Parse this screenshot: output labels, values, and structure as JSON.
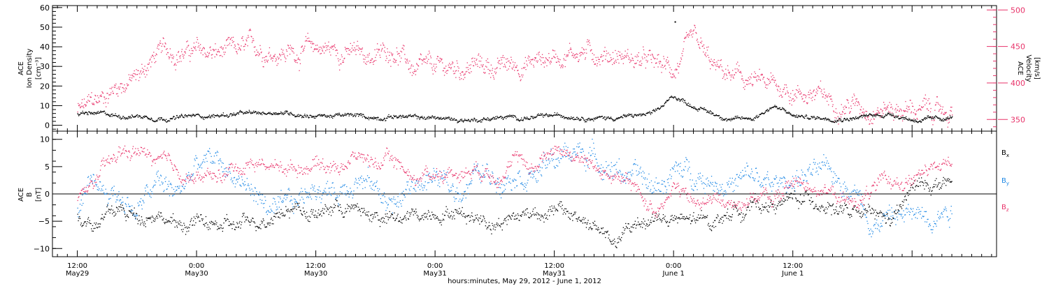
{
  "chart_data": [
    {
      "type": "scatter",
      "panel": "top",
      "left_axis": {
        "label_lines": [
          "ACE",
          "Ion Density",
          "[cm⁻³]"
        ],
        "ylim": [
          -3,
          61
        ],
        "ticks": [
          0,
          10,
          20,
          30,
          40,
          50,
          60
        ],
        "tick_labels": [
          "0",
          "10",
          "20",
          "30",
          "40",
          "50",
          "60"
        ],
        "color": "#000000"
      },
      "right_axis": {
        "label_lines": [
          "ACE",
          "Velocity",
          "[km/s]"
        ],
        "ylim": [
          334,
          506
        ],
        "ticks": [
          350,
          400,
          450,
          500
        ],
        "tick_labels": [
          "350",
          "400",
          "450",
          "500"
        ],
        "color": "#e8336a"
      },
      "series": [
        {
          "axis": "right",
          "color": "#e8336a",
          "x_hours": [
            0,
            2,
            4,
            6,
            8,
            10,
            12,
            14,
            16,
            18,
            20,
            22,
            24,
            26,
            28,
            30,
            32,
            34,
            36,
            38,
            40,
            42,
            44,
            46,
            48,
            50,
            52,
            54,
            56,
            58,
            60,
            62,
            64,
            66,
            68,
            70,
            72,
            74,
            76,
            78,
            80,
            82,
            84,
            86,
            88
          ],
          "values": [
            362,
            375,
            398,
            408,
            440,
            445,
            443,
            440,
            442,
            448,
            445,
            443,
            450,
            445,
            440,
            437,
            448,
            415,
            418,
            420,
            425,
            422,
            425,
            430,
            438,
            445,
            442,
            440,
            433,
            425,
            418,
            455,
            418,
            408,
            400,
            395,
            390,
            385,
            375,
            372,
            368,
            366,
            365,
            362,
            360
          ],
          "spread": 18
        },
        {
          "axis": "left",
          "color": "#000000",
          "x_hours": [
            0,
            2,
            4,
            6,
            8,
            10,
            12,
            14,
            16,
            18,
            20,
            22,
            24,
            26,
            28,
            30,
            32,
            34,
            36,
            38,
            40,
            42,
            44,
            46,
            48,
            50,
            52,
            54,
            56,
            58,
            60,
            62,
            64,
            66,
            68,
            70,
            72,
            74,
            76,
            78,
            80,
            82,
            84,
            86,
            88
          ],
          "values": [
            6,
            6,
            5,
            5,
            4,
            4,
            5,
            5,
            6,
            6,
            7,
            6,
            5,
            5,
            5,
            4,
            5,
            4,
            4,
            3,
            3,
            4,
            4,
            4,
            5,
            5,
            4,
            4,
            5,
            6,
            15,
            10,
            6,
            3,
            4,
            10,
            5,
            4,
            4,
            4,
            5,
            6,
            3,
            3,
            4
          ],
          "spread": 1.5
        }
      ]
    },
    {
      "type": "scatter",
      "panel": "bottom",
      "left_axis": {
        "label_lines": [
          "ACE",
          "B",
          "[nT]"
        ],
        "ylim": [
          -11.5,
          11.5
        ],
        "ticks": [
          -10,
          -5,
          0,
          5,
          10
        ],
        "tick_labels": [
          "−10",
          "−5",
          "0",
          "5",
          "10"
        ],
        "color": "#000000"
      },
      "zero_line": true,
      "series": [
        {
          "name": "B",
          "subscript": "x",
          "color": "#000000",
          "x_hours": [
            0,
            2,
            4,
            6,
            8,
            10,
            12,
            14,
            16,
            18,
            20,
            22,
            24,
            26,
            28,
            30,
            32,
            34,
            36,
            38,
            40,
            42,
            44,
            46,
            48,
            50,
            52,
            54,
            56,
            58,
            60,
            62,
            64,
            66,
            68,
            70,
            72,
            74,
            76,
            78,
            80,
            82,
            84,
            86,
            88
          ],
          "values": [
            -4,
            -5,
            -3,
            -4,
            -3,
            -6,
            -5,
            -6,
            -6,
            -5,
            -3,
            -2,
            -4,
            -2,
            -3,
            -4,
            -5,
            -4,
            -3,
            -3,
            -4,
            -5,
            -4,
            -3,
            -3,
            -4,
            -6,
            -9,
            -6,
            -4,
            -5,
            -5,
            -5,
            -3,
            -2,
            -2,
            -1,
            -1,
            -2,
            -4,
            -4,
            -5,
            1,
            2,
            2
          ],
          "spread": 1.8
        },
        {
          "name": "B",
          "subscript": "y",
          "color": "#1e88e5",
          "x_hours": [
            0,
            2,
            4,
            6,
            8,
            10,
            12,
            14,
            16,
            18,
            20,
            22,
            24,
            26,
            28,
            30,
            32,
            34,
            36,
            38,
            40,
            42,
            44,
            46,
            48,
            50,
            52,
            54,
            56,
            58,
            60,
            62,
            64,
            66,
            68,
            70,
            72,
            74,
            76,
            78,
            80,
            82,
            84,
            86,
            88
          ],
          "values": [
            -2,
            1,
            0,
            -3,
            2,
            0,
            5,
            6,
            3,
            0,
            -4,
            -2,
            2,
            0,
            4,
            1,
            -2,
            2,
            3,
            0,
            4,
            3,
            5,
            4,
            6,
            8,
            7,
            5,
            3,
            1,
            4,
            4,
            3,
            2,
            3,
            1,
            3,
            4,
            3,
            2,
            -5,
            -4,
            -4,
            -3,
            -2
          ],
          "spread": 2.8
        },
        {
          "name": "B",
          "subscript": "z",
          "color": "#e8336a",
          "x_hours": [
            0,
            2,
            4,
            6,
            8,
            10,
            12,
            14,
            16,
            18,
            20,
            22,
            24,
            26,
            28,
            30,
            32,
            34,
            36,
            38,
            40,
            42,
            44,
            46,
            48,
            50,
            52,
            54,
            56,
            58,
            60,
            62,
            64,
            66,
            68,
            70,
            72,
            74,
            76,
            78,
            80,
            82,
            84,
            86,
            88
          ],
          "values": [
            -1,
            3,
            7,
            8,
            6,
            4,
            3,
            3,
            5,
            6,
            5,
            5,
            6,
            5,
            7,
            6,
            6,
            3,
            4,
            4,
            5,
            4,
            6,
            5,
            9,
            7,
            5,
            3,
            1,
            -3,
            2,
            -2,
            -1,
            -2,
            0,
            -1,
            2,
            2,
            0,
            -2,
            1,
            2,
            3,
            4,
            6
          ],
          "spread": 1.8
        }
      ]
    }
  ],
  "x_axis": {
    "range_hours": [
      -2.5,
      92.5
    ],
    "major_ticks_hours": [
      0,
      12,
      24,
      36,
      48,
      60,
      72,
      84
    ],
    "minor_tick_step_hours": 1,
    "major_labels": [
      {
        "time": "12:00",
        "date": "May29"
      },
      {
        "time": "0:00",
        "date": "May30"
      },
      {
        "time": "12:00",
        "date": "May30"
      },
      {
        "time": "0:00",
        "date": "May31"
      },
      {
        "time": "12:00",
        "date": "May31"
      },
      {
        "time": "0:00",
        "date": "June 1"
      },
      {
        "time": "12:00",
        "date": "June 1"
      }
    ],
    "label_hours": [
      0,
      12,
      24,
      36,
      48,
      60,
      72
    ],
    "title": "hours:minutes, May 29, 2012 - June  1, 2012"
  },
  "annotations": {
    "outlier_point": {
      "x_hours": 60.1,
      "y": 53,
      "color": "#000000"
    }
  }
}
